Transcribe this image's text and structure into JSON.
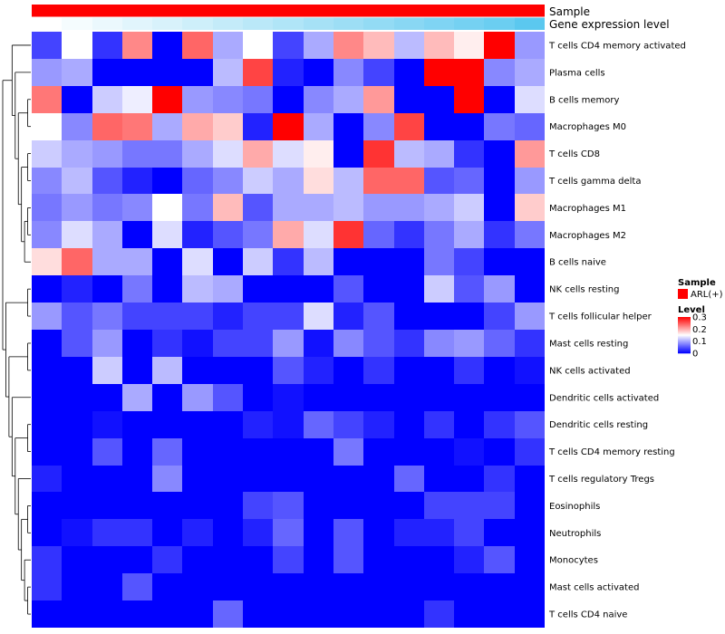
{
  "chart_data": {
    "type": "heatmap",
    "annotation_tracks": [
      {
        "name": "Sample",
        "type": "categorical",
        "color": "#FF0000"
      },
      {
        "name": "Gene expression level",
        "type": "gradient",
        "low_color": "#FFFFFF",
        "high_color": "#5BC8EF"
      }
    ],
    "rows": [
      "T cells CD4 memory activated",
      "Plasma cells",
      "B cells memory",
      "Macrophages M0",
      "T cells CD8",
      "T cells gamma delta",
      "Macrophages M1",
      "Macrophages M2",
      "B cells naive",
      "NK cells resting",
      "T cells follicular helper",
      "Mast cells resting",
      "NK cells activated",
      "Dendritic cells activated",
      "Dendritic cells resting",
      "T cells CD4 memory resting",
      "T cells regulatory  Tregs",
      "Eosinophils",
      "Neutrophils",
      "Monocytes",
      "Mast cells activated",
      "T cells CD4 naive"
    ],
    "n_columns": 17,
    "values": [
      [
        0.04,
        0.15,
        0.03,
        0.22,
        0.0,
        0.24,
        0.1,
        0.15,
        0.04,
        0.1,
        0.22,
        0.19,
        0.11,
        0.19,
        0.16,
        0.3,
        0.09
      ],
      [
        0.09,
        0.1,
        0.0,
        0.0,
        0.0,
        0.0,
        0.11,
        0.26,
        0.02,
        0.0,
        0.08,
        0.04,
        0.0,
        0.3,
        0.3,
        0.08,
        0.1
      ],
      [
        0.23,
        0.0,
        0.12,
        0.14,
        0.3,
        0.09,
        0.08,
        0.07,
        0.0,
        0.08,
        0.1,
        0.21,
        0.0,
        0.0,
        0.3,
        0.0,
        0.13
      ],
      [
        0.15,
        0.08,
        0.24,
        0.23,
        0.1,
        0.2,
        0.18,
        0.02,
        0.3,
        0.1,
        0.0,
        0.08,
        0.26,
        0.0,
        0.0,
        0.07,
        0.06
      ],
      [
        0.12,
        0.1,
        0.09,
        0.07,
        0.07,
        0.1,
        0.13,
        0.2,
        0.13,
        0.16,
        0.0,
        0.27,
        0.11,
        0.1,
        0.03,
        0.0,
        0.21
      ],
      [
        0.08,
        0.11,
        0.05,
        0.02,
        0.0,
        0.06,
        0.08,
        0.12,
        0.1,
        0.17,
        0.11,
        0.24,
        0.24,
        0.05,
        0.06,
        0.0,
        0.09
      ],
      [
        0.07,
        0.09,
        0.07,
        0.08,
        0.15,
        0.07,
        0.19,
        0.05,
        0.1,
        0.1,
        0.11,
        0.09,
        0.09,
        0.1,
        0.12,
        0.0,
        0.18
      ],
      [
        0.08,
        0.13,
        0.1,
        0.0,
        0.13,
        0.02,
        0.05,
        0.07,
        0.2,
        0.13,
        0.27,
        0.06,
        0.03,
        0.07,
        0.1,
        0.03,
        0.07
      ],
      [
        0.17,
        0.24,
        0.1,
        0.1,
        0.0,
        0.13,
        0.0,
        0.12,
        0.03,
        0.11,
        0.0,
        0.0,
        0.0,
        0.07,
        0.04,
        0.0,
        0.0
      ],
      [
        0.0,
        0.02,
        0.0,
        0.07,
        0.0,
        0.11,
        0.1,
        0.0,
        0.0,
        0.0,
        0.05,
        0.0,
        0.0,
        0.12,
        0.05,
        0.09,
        0.0
      ],
      [
        0.09,
        0.05,
        0.07,
        0.04,
        0.04,
        0.04,
        0.02,
        0.04,
        0.04,
        0.13,
        0.02,
        0.05,
        0.0,
        0.0,
        0.0,
        0.04,
        0.09
      ],
      [
        0.0,
        0.05,
        0.09,
        0.0,
        0.03,
        0.01,
        0.04,
        0.04,
        0.09,
        0.01,
        0.08,
        0.05,
        0.03,
        0.08,
        0.09,
        0.06,
        0.03
      ],
      [
        0.0,
        0.0,
        0.12,
        0.0,
        0.11,
        0.0,
        0.0,
        0.0,
        0.05,
        0.02,
        0.0,
        0.03,
        0.0,
        0.0,
        0.03,
        0.0,
        0.01
      ],
      [
        0.0,
        0.0,
        0.0,
        0.1,
        0.0,
        0.09,
        0.05,
        0.0,
        0.01,
        0.0,
        0.0,
        0.0,
        0.0,
        0.0,
        0.0,
        0.0,
        0.0
      ],
      [
        0.0,
        0.0,
        0.01,
        0.0,
        0.0,
        0.0,
        0.0,
        0.02,
        0.01,
        0.06,
        0.04,
        0.02,
        0.0,
        0.03,
        0.0,
        0.03,
        0.05
      ],
      [
        0.0,
        0.0,
        0.05,
        0.0,
        0.06,
        0.0,
        0.0,
        0.0,
        0.0,
        0.0,
        0.07,
        0.0,
        0.0,
        0.0,
        0.01,
        0.0,
        0.03
      ],
      [
        0.02,
        0.0,
        0.0,
        0.0,
        0.08,
        0.0,
        0.0,
        0.0,
        0.0,
        0.0,
        0.0,
        0.0,
        0.06,
        0.0,
        0.0,
        0.03,
        0.0
      ],
      [
        0.0,
        0.0,
        0.0,
        0.0,
        0.0,
        0.0,
        0.0,
        0.04,
        0.05,
        0.0,
        0.0,
        0.0,
        0.0,
        0.04,
        0.04,
        0.04,
        0.0
      ],
      [
        0.0,
        0.01,
        0.03,
        0.03,
        0.0,
        0.02,
        0.0,
        0.02,
        0.06,
        0.0,
        0.05,
        0.0,
        0.02,
        0.02,
        0.04,
        0.0,
        0.0
      ],
      [
        0.03,
        0.0,
        0.0,
        0.0,
        0.03,
        0.0,
        0.0,
        0.0,
        0.04,
        0.0,
        0.05,
        0.0,
        0.0,
        0.0,
        0.02,
        0.05,
        0.0
      ],
      [
        0.03,
        0.0,
        0.0,
        0.05,
        0.0,
        0.0,
        0.0,
        0.0,
        0.0,
        0.0,
        0.0,
        0.0,
        0.0,
        0.0,
        0.0,
        0.0,
        0.0
      ],
      [
        0.0,
        0.0,
        0.0,
        0.0,
        0.0,
        0.0,
        0.06,
        0.0,
        0.0,
        0.0,
        0.0,
        0.0,
        0.0,
        0.03,
        0.0,
        0.0,
        0.0
      ]
    ],
    "gene_expression_levels": [
      0.0,
      0.06,
      0.12,
      0.18,
      0.24,
      0.3,
      0.36,
      0.42,
      0.48,
      0.54,
      0.6,
      0.66,
      0.72,
      0.78,
      0.84,
      0.9,
      1.0
    ],
    "color_scale": {
      "min": 0,
      "max": 0.3,
      "low_color": "#0000FF",
      "mid_color": "#FFFFFF",
      "high_color": "#FF0000"
    },
    "legend": {
      "placement": "right",
      "sample_title": "Sample",
      "sample_label": "ARL(+)",
      "level_title": "Level",
      "level_ticks": [
        {
          "value": 0.3,
          "label": "0.3"
        },
        {
          "value": 0.2,
          "label": "0.2"
        },
        {
          "value": 0.1,
          "label": "0.1"
        },
        {
          "value": 0.0,
          "label": "0"
        }
      ]
    },
    "row_dendrogram": {
      "children": [
        {
          "children": [
            {
              "leaf": 0
            },
            {
              "children": [
                {
                  "leaf": 1
                },
                {
                  "children": [
                    {
                      "children": [
                        {
                          "leaf": 2
                        },
                        {
                          "leaf": 3
                        }
                      ]
                    },
                    {
                      "children": [
                        {
                          "children": [
                            {
                              "leaf": 4
                            },
                            {
                              "leaf": 5
                            }
                          ]
                        },
                        {
                          "children": [
                            {
                              "children": [
                                {
                                  "leaf": 6
                                },
                                {
                                  "leaf": 7
                                }
                              ]
                            },
                            {
                              "leaf": 8
                            }
                          ]
                        }
                      ]
                    }
                  ]
                }
              ]
            }
          ]
        },
        {
          "children": [
            {
              "children": [
                {
                  "leaf": 9
                },
                {
                  "leaf": 10
                }
              ]
            },
            {
              "children": [
                {
                  "children": [
                    {
                      "leaf": 11
                    },
                    {
                      "leaf": 12
                    }
                  ]
                },
                {
                  "children": [
                    {
                      "leaf": 13
                    },
                    {
                      "children": [
                        {
                          "children": [
                            {
                              "leaf": 14
                            },
                            {
                              "leaf": 15
                            }
                          ]
                        },
                        {
                          "children": [
                            {
                              "leaf": 16
                            },
                            {
                              "children": [
                                {
                                  "children": [
                                    {
                                      "leaf": 17
                                    },
                                    {
                                      "leaf": 18
                                    }
                                  ]
                                },
                                {
                                  "children": [
                                    {
                                      "leaf": 19
                                    },
                                    {
                                      "children": [
                                        {
                                          "leaf": 20
                                        },
                                        {
                                          "leaf": 21
                                        }
                                      ]
                                    }
                                  ]
                                }
                              ]
                            }
                          ]
                        }
                      ]
                    }
                  ]
                }
              ]
            }
          ]
        }
      ]
    }
  }
}
